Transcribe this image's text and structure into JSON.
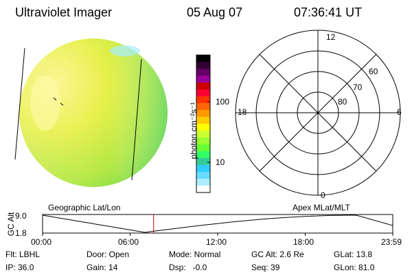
{
  "header": {
    "instrument": "Ultraviolet Imager",
    "date": "05 Aug 07",
    "time": "07:36:41 UT"
  },
  "colorbar": {
    "unit_label": "photon cm⁻²s⁻¹",
    "ticks": [
      "100",
      "10"
    ],
    "colors_top_to_bottom": [
      "#000000",
      "#330033",
      "#660066",
      "#990099",
      "#cc0000",
      "#ff0033",
      "#ff3300",
      "#ff6600",
      "#ff9900",
      "#ffcc00",
      "#ffff00",
      "#ccff33",
      "#99ff33",
      "#66ff33",
      "#33ff66",
      "#33cc99",
      "#33ccff",
      "#66ddff",
      "#aaeeff",
      "#ffffff"
    ]
  },
  "polar_plot": {
    "clock_labels": [
      "12",
      "18",
      "6",
      "0"
    ],
    "latitude_labels": [
      "60",
      "70",
      "80"
    ]
  },
  "timeline": {
    "left_label": "Geographic Lat/Lon",
    "right_label": "Apex MLat/MLT",
    "y_axis_label": "GC Alt",
    "y_ticks": [
      "9.0",
      "1.8"
    ],
    "x_ticks": [
      "00:00",
      "06:00",
      "12:00",
      "18:00",
      "23:59"
    ],
    "current_time_marker_hours": 7.61,
    "marker_color": "#cc0000"
  },
  "status": {
    "row1": [
      "Flt: LBHL",
      "Door: Open",
      "Mode: Normal",
      "GC Alt: 2.6 Re",
      "GLat: 13.8"
    ],
    "row2": [
      "IP: 36.0",
      "Gain: 14",
      "Dsp:   -0.0",
      "Seq: 39",
      "GLon: 81.0"
    ]
  }
}
